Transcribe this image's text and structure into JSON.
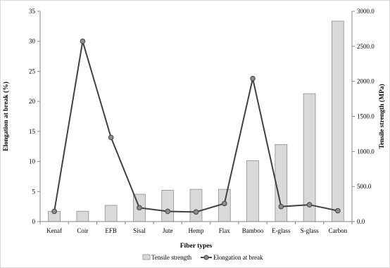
{
  "chart_data": {
    "type": "bar",
    "xlabel": "Fiber types",
    "ylabel_left": "Elongation at break (%)",
    "ylabel_right": "Tensile strength (MPa)",
    "categories": [
      "Kenaf",
      "Coir",
      "EFB",
      "Sisal",
      "Jute",
      "Hemp",
      "Flax",
      "Bamboo",
      "E-glass",
      "S-glass",
      "Carbon"
    ],
    "series": [
      {
        "name": "Tensile strength",
        "type": "bar",
        "axis": "right",
        "color": "#d9d9d9",
        "values": [
          145,
          148,
          232,
          390,
          447,
          460,
          460,
          870,
          1100,
          1825,
          2860
        ]
      },
      {
        "name": "Elongation at break",
        "type": "line",
        "axis": "left",
        "color": "#404040",
        "values": [
          1.7,
          30.0,
          14.0,
          2.3,
          1.7,
          1.6,
          3.0,
          23.8,
          2.5,
          2.8,
          1.8
        ]
      }
    ],
    "ylim_left": [
      0,
      35
    ],
    "yticks_left": [
      "0",
      "5",
      "10",
      "15",
      "20",
      "25",
      "30",
      "35"
    ],
    "ylim_right": [
      0,
      3000
    ],
    "yticks_right": [
      "0.0",
      "500.0",
      "1000.0",
      "1500.0",
      "2000.0",
      "2500.0",
      "3000.0"
    ],
    "grid": false,
    "legend_position": "bottom"
  }
}
